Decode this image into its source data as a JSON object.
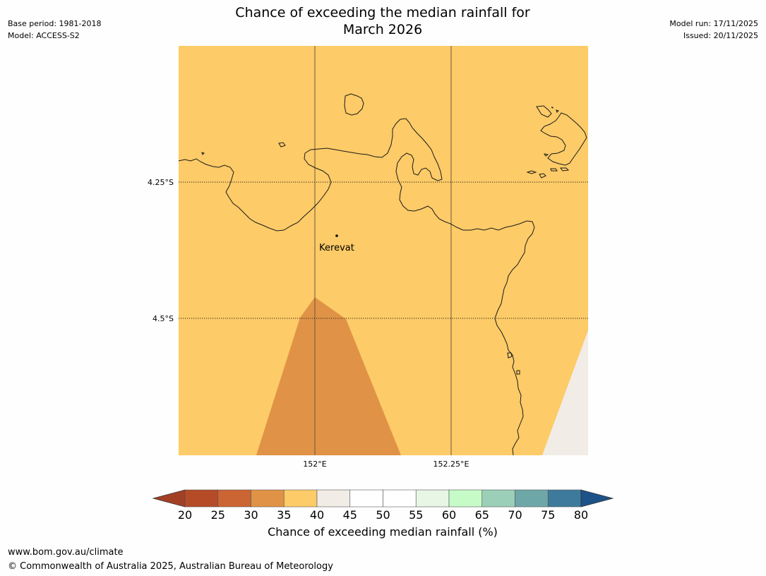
{
  "header": {
    "base_period": "Base period: 1981-2018",
    "model": "Model: ACCESS-S2",
    "title_line1": "Chance of exceeding the median rainfall for",
    "title_line2": "March 2026",
    "model_run": "Model run: 17/11/2025",
    "issued": "Issued: 20/11/2025"
  },
  "map": {
    "place_label": "Kerevat",
    "lat_labels": [
      "4.25°S",
      "4.5°S"
    ],
    "lon_labels": [
      "152°E",
      "152.25°E"
    ],
    "colors": {
      "background_class": "#fdcb67",
      "lower_class": "#e09346",
      "upper_class": "#f1ece6",
      "coast": "#1a1a1a"
    }
  },
  "colorbar": {
    "ticks": [
      "20",
      "25",
      "30",
      "35",
      "40",
      "45",
      "50",
      "55",
      "60",
      "65",
      "70",
      "75",
      "80"
    ],
    "colors": [
      "#a33f25",
      "#b54c27",
      "#cc6534",
      "#e09346",
      "#fdcb67",
      "#f1ece6",
      "#ffffff",
      "#ffffff",
      "#e8f6e6",
      "#c6fbc8",
      "#9bcfb8",
      "#6ea7a7",
      "#3e7a9b",
      "#1d5289"
    ],
    "label": "Chance of exceeding median rainfall (%)"
  },
  "footer": {
    "url": "www.bom.gov.au/climate",
    "copyright": "© Commonwealth of Australia 2025, Australian Bureau of Meteorology"
  }
}
